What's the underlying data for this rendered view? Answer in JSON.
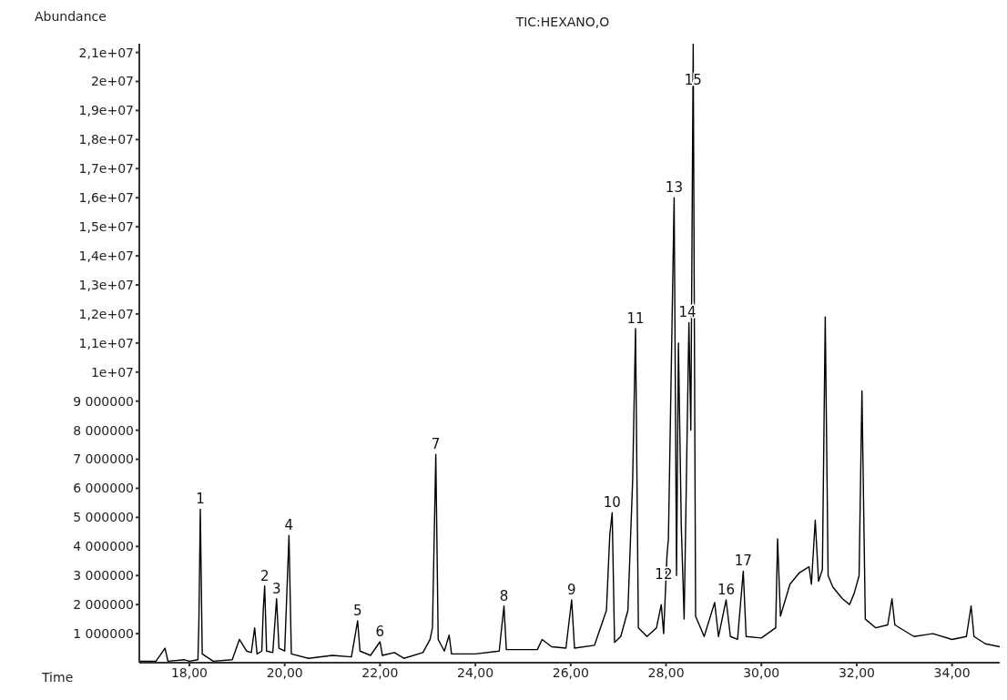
{
  "chart_data": {
    "type": "line",
    "title": "TIC:HEXANO,O",
    "xlabel": "Time",
    "ylabel": "Abundance",
    "xlim": [
      16.95,
      35
    ],
    "ylim": [
      0,
      21300000
    ],
    "xticks": [
      {
        "value": 18,
        "label": "18,00"
      },
      {
        "value": 20,
        "label": "20,00"
      },
      {
        "value": 22,
        "label": "22,00"
      },
      {
        "value": 24,
        "label": "24,00"
      },
      {
        "value": 26,
        "label": "26,00"
      },
      {
        "value": 28,
        "label": "28,00"
      },
      {
        "value": 30,
        "label": "30,00"
      },
      {
        "value": 32,
        "label": "32,00"
      },
      {
        "value": 34,
        "label": "34,00"
      }
    ],
    "yticks": [
      {
        "value": 1000000,
        "label": "1 000000"
      },
      {
        "value": 2000000,
        "label": "2 000000"
      },
      {
        "value": 3000000,
        "label": "3 000000"
      },
      {
        "value": 4000000,
        "label": "4 000000"
      },
      {
        "value": 5000000,
        "label": "5 000000"
      },
      {
        "value": 6000000,
        "label": "6 000000"
      },
      {
        "value": 7000000,
        "label": "7 000000"
      },
      {
        "value": 8000000,
        "label": "8 000000"
      },
      {
        "value": 9000000,
        "label": "9 000000"
      },
      {
        "value": 10000000,
        "label": "1e+07"
      },
      {
        "value": 11000000,
        "label": "1,1e+07"
      },
      {
        "value": 12000000,
        "label": "1,2e+07"
      },
      {
        "value": 13000000,
        "label": "1,3e+07"
      },
      {
        "value": 14000000,
        "label": "1,4e+07"
      },
      {
        "value": 15000000,
        "label": "1,5e+07"
      },
      {
        "value": 16000000,
        "label": "1,6e+07"
      },
      {
        "value": 17000000,
        "label": "1,7e+07"
      },
      {
        "value": 18000000,
        "label": "1,8e+07"
      },
      {
        "value": 19000000,
        "label": "1,9e+07"
      },
      {
        "value": 20000000,
        "label": "2e+07"
      },
      {
        "value": 21000000,
        "label": "2,1e+07"
      }
    ],
    "grid": false,
    "marker": "none",
    "line_style": "solid",
    "series": [
      {
        "color": "#000000",
        "x": [
          16.95,
          17.3,
          17.49,
          17.55,
          17.9,
          18.0,
          18.18,
          18.2,
          18.23,
          18.27,
          18.5,
          18.9,
          19.05,
          19.2,
          19.3,
          19.37,
          19.42,
          19.52,
          19.55,
          19.58,
          19.62,
          19.75,
          19.83,
          19.88,
          20.0,
          20.09,
          20.14,
          20.5,
          21.0,
          21.4,
          21.53,
          21.58,
          21.8,
          22.0,
          22.05,
          22.3,
          22.5,
          22.9,
          23.05,
          23.1,
          23.17,
          23.22,
          23.35,
          23.45,
          23.5,
          24.0,
          24.5,
          24.6,
          24.65,
          25.3,
          25.4,
          25.6,
          25.9,
          26.02,
          26.08,
          26.5,
          26.75,
          26.82,
          26.87,
          26.92,
          27.05,
          27.2,
          27.3,
          27.36,
          27.42,
          27.6,
          27.8,
          27.9,
          27.95,
          28.02,
          28.05,
          28.17,
          28.22,
          28.26,
          28.32,
          28.38,
          28.48,
          28.52,
          28.57,
          28.62,
          28.8,
          29.02,
          29.1,
          29.26,
          29.35,
          29.5,
          29.62,
          29.68,
          30.0,
          30.3,
          30.34,
          30.4,
          30.6,
          30.8,
          31.0,
          31.05,
          31.13,
          31.2,
          31.28,
          31.34,
          31.4,
          31.5,
          31.7,
          31.85,
          31.95,
          32.05,
          32.11,
          32.18,
          32.4,
          32.65,
          32.74,
          32.8,
          33.2,
          33.6,
          34.0,
          34.3,
          34.4,
          34.46,
          34.7,
          35.0
        ],
        "values": [
          50000,
          50000,
          500000,
          50000,
          100000,
          50000,
          100000,
          1400000,
          5280000,
          300000,
          50000,
          100000,
          800000,
          400000,
          350000,
          1200000,
          300000,
          400000,
          1800000,
          2640000,
          400000,
          350000,
          2200000,
          500000,
          400000,
          4380000,
          300000,
          150000,
          250000,
          200000,
          1440000,
          400000,
          250000,
          720000,
          250000,
          350000,
          150000,
          350000,
          800000,
          1200000,
          7170000,
          800000,
          400000,
          950000,
          300000,
          300000,
          400000,
          1950000,
          450000,
          450000,
          800000,
          550000,
          500000,
          2160000,
          500000,
          600000,
          1800000,
          4400000,
          5160000,
          700000,
          900000,
          1800000,
          6300000,
          11500000,
          1200000,
          900000,
          1200000,
          2000000,
          1000000,
          3700000,
          4260000,
          16000000,
          3000000,
          11000000,
          4700000,
          1500000,
          11700000,
          8000000,
          21300000,
          1600000,
          900000,
          2070000,
          900000,
          2160000,
          900000,
          800000,
          3150000,
          900000,
          850000,
          1200000,
          4260000,
          1600000,
          2700000,
          3100000,
          3300000,
          2700000,
          4900000,
          2800000,
          3200000,
          11900000,
          3000000,
          2600000,
          2200000,
          2000000,
          2400000,
          3000000,
          9350000,
          1500000,
          1200000,
          1300000,
          2200000,
          1300000,
          900000,
          1000000,
          800000,
          900000,
          1950000,
          900000,
          650000,
          550000
        ]
      }
    ],
    "annotations": [
      {
        "text": "1",
        "x": 18.23,
        "y": 5280000
      },
      {
        "text": "2",
        "x": 19.58,
        "y": 2640000
      },
      {
        "text": "3",
        "x": 19.83,
        "y": 2200000
      },
      {
        "text": "4",
        "x": 20.09,
        "y": 4380000
      },
      {
        "text": "5",
        "x": 21.53,
        "y": 1440000
      },
      {
        "text": "6",
        "x": 22.0,
        "y": 720000
      },
      {
        "text": "7",
        "x": 23.17,
        "y": 7170000
      },
      {
        "text": "8",
        "x": 24.6,
        "y": 1950000
      },
      {
        "text": "9",
        "x": 26.02,
        "y": 2160000
      },
      {
        "text": "10",
        "x": 26.87,
        "y": 5160000
      },
      {
        "text": "11",
        "x": 27.36,
        "y": 11500000
      },
      {
        "text": "12",
        "x": 27.95,
        "y": 2700000
      },
      {
        "text": "13",
        "x": 28.17,
        "y": 16000000
      },
      {
        "text": "14",
        "x": 28.45,
        "y": 11700000
      },
      {
        "text": "15",
        "x": 28.57,
        "y": 19700000
      },
      {
        "text": "16",
        "x": 29.26,
        "y": 2160000
      },
      {
        "text": "17",
        "x": 29.62,
        "y": 3150000
      }
    ]
  }
}
